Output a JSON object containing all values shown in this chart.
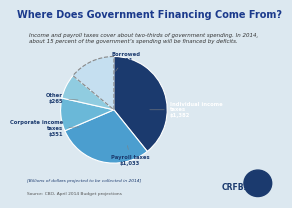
{
  "title": "Where Does Government Financing Come From?",
  "subtitle": "Income and payroll taxes cover about two-thirds of government spending. In 2014,\nabout 15 percent of the government’s spending will be financed by deficits.",
  "slices": [
    {
      "label": "Individual income\ntaxes\n$1,382",
      "value": 1382,
      "color": "#1b3a6e"
    },
    {
      "label": "Payroll taxes\n$1,033",
      "value": 1033,
      "color": "#4b9ecf"
    },
    {
      "label": "Corporate income\ntaxes\n$351",
      "value": 351,
      "color": "#6ab8d8"
    },
    {
      "label": "Other\n$265",
      "value": 265,
      "color": "#90cce0"
    },
    {
      "label": "Borrowed\n$491",
      "value": 491,
      "color": "#c5dff0"
    }
  ],
  "footnote": "[Billions of dollars projected to be collected in 2014]",
  "source": "Source: CBO, April 2014 Budget projections",
  "bg_color": "#dce8f0",
  "title_color": "#1b3a8c",
  "title_fontsize": 7.0,
  "subtitle_fontsize": 4.0,
  "label_fontsize": 3.8,
  "footnote_fontsize": 3.2
}
